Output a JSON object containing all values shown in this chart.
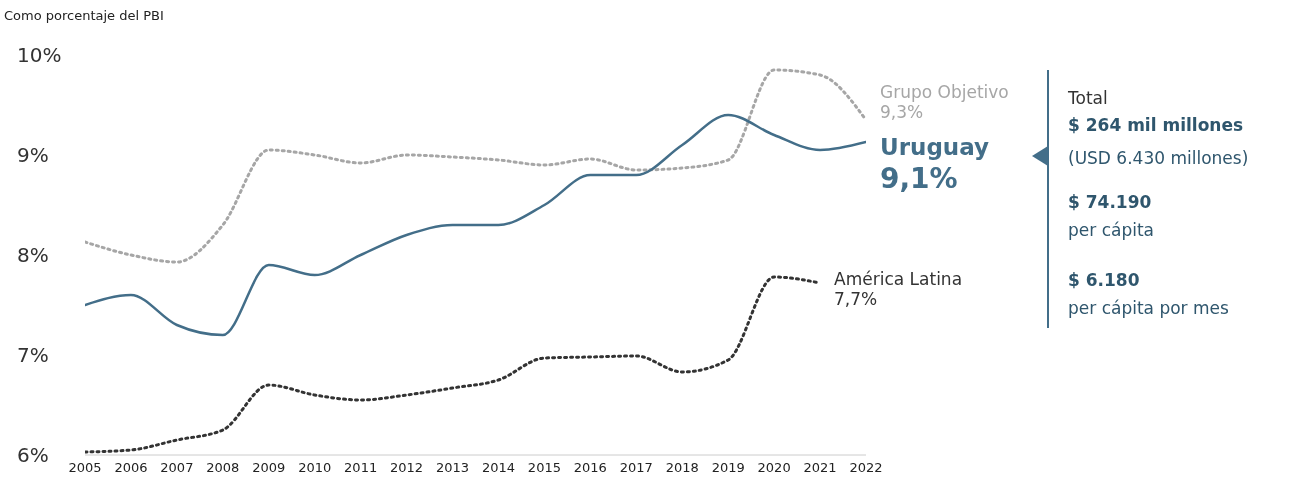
{
  "chart_data": {
    "type": "line",
    "ylabel": "Como porcentaje del PBI",
    "x": [
      2005,
      2006,
      2007,
      2008,
      2009,
      2010,
      2011,
      2012,
      2013,
      2014,
      2015,
      2016,
      2017,
      2018,
      2019,
      2020,
      2021,
      2022
    ],
    "xlim": [
      2005,
      2022
    ],
    "xticks": [
      2005,
      2006,
      2007,
      2008,
      2009,
      2010,
      2011,
      2012,
      2013,
      2014,
      2015,
      2016,
      2017,
      2018,
      2019,
      2020,
      2021,
      2022
    ],
    "ylim": [
      6,
      10
    ],
    "yticks": [
      {
        "value": 6,
        "label": "6%"
      },
      {
        "value": 7,
        "label": "7%"
      },
      {
        "value": 8,
        "label": "8%"
      },
      {
        "value": 9,
        "label": "9%"
      },
      {
        "value": 10,
        "label": "10%"
      }
    ],
    "legend": "right",
    "series": [
      {
        "name": "Grupo Objetivo",
        "color": "#a6a6a6",
        "line_style": "dotted",
        "values": [
          8.13,
          8.0,
          7.93,
          8.3,
          9.05,
          9.0,
          8.92,
          9.0,
          8.98,
          8.95,
          8.9,
          8.96,
          8.85,
          8.87,
          8.95,
          9.85,
          9.8,
          9.35
        ],
        "value_labels": [
          null,
          null,
          null,
          null,
          null,
          null,
          null,
          null,
          null,
          null,
          null,
          null,
          null,
          null,
          null,
          null,
          null,
          "9,3%"
        ]
      },
      {
        "name": "Uruguay",
        "color": "#436e89",
        "line_style": "solid",
        "values": [
          7.5,
          7.6,
          7.3,
          7.2,
          7.9,
          7.8,
          8.0,
          8.2,
          8.3,
          8.3,
          8.5,
          8.8,
          8.8,
          9.1,
          9.4,
          9.2,
          9.05,
          9.13
        ],
        "value_labels": [
          null,
          null,
          null,
          null,
          null,
          null,
          null,
          null,
          null,
          null,
          null,
          null,
          null,
          null,
          null,
          null,
          null,
          "9,1%"
        ]
      },
      {
        "name": "América Latina",
        "color": "#333333",
        "line_style": "dotted",
        "values": [
          6.03,
          6.05,
          6.15,
          6.25,
          6.7,
          6.6,
          6.55,
          6.6,
          6.67,
          6.75,
          6.97,
          6.98,
          6.99,
          6.83,
          6.95,
          7.78,
          7.72,
          null
        ],
        "value_labels": [
          null,
          null,
          null,
          null,
          null,
          null,
          null,
          null,
          null,
          null,
          null,
          null,
          null,
          null,
          null,
          null,
          "7,7%",
          null
        ]
      }
    ],
    "annotations": [
      "Total",
      "$ 264 mil millones",
      "(USD 6.430 millones)",
      "$ 74.190",
      "per cápita",
      "$ 6.180",
      "per cápita por mes"
    ]
  }
}
